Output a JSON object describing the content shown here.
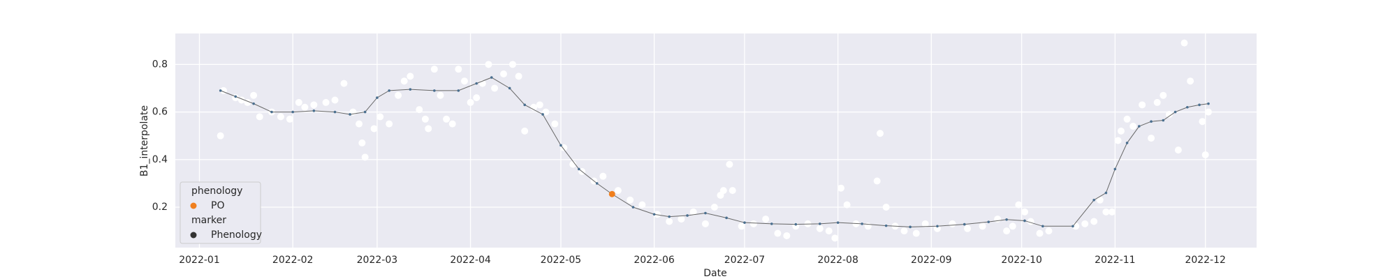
{
  "chart_data": {
    "type": "line",
    "xlabel": "Date",
    "ylabel": "B1_interpolate",
    "xlim": [
      -8,
      351
    ],
    "ylim": [
      0.03,
      0.93
    ],
    "xticks": [
      {
        "value": 0,
        "label": "2022-01"
      },
      {
        "value": 31,
        "label": "2022-02"
      },
      {
        "value": 59,
        "label": "2022-03"
      },
      {
        "value": 90,
        "label": "2022-04"
      },
      {
        "value": 120,
        "label": "2022-05"
      },
      {
        "value": 151,
        "label": "2022-06"
      },
      {
        "value": 181,
        "label": "2022-07"
      },
      {
        "value": 212,
        "label": "2022-08"
      },
      {
        "value": 243,
        "label": "2022-09"
      },
      {
        "value": 273,
        "label": "2022-10"
      },
      {
        "value": 304,
        "label": "2022-11"
      },
      {
        "value": 334,
        "label": "2022-12"
      }
    ],
    "yticks": [
      0.2,
      0.4,
      0.6,
      0.8
    ],
    "grid": true,
    "legend": {
      "hue_title": "phenology",
      "style_title": "marker",
      "style_label": "Phenology",
      "loc": "lower left"
    },
    "series": [
      {
        "name": "PO",
        "kind": "point",
        "color": "#f07f1e",
        "x": [
          137
        ],
        "values": [
          0.255
        ]
      },
      {
        "kind": "line",
        "color": "#4a6f8f",
        "x": [
          7,
          12,
          18,
          24,
          31,
          38,
          45,
          50,
          55,
          59,
          63,
          70,
          78,
          86,
          92,
          97,
          103,
          108,
          114,
          120,
          126,
          132,
          137,
          144,
          151,
          156,
          162,
          168,
          175,
          181,
          190,
          198,
          206,
          212,
          220,
          228,
          236,
          245,
          254,
          262,
          268,
          274,
          280,
          290,
          297,
          301,
          304,
          308,
          312,
          316,
          320,
          324,
          328,
          332,
          335
        ],
        "values": [
          0.69,
          0.665,
          0.635,
          0.6,
          0.6,
          0.605,
          0.6,
          0.59,
          0.6,
          0.66,
          0.69,
          0.695,
          0.69,
          0.69,
          0.72,
          0.745,
          0.7,
          0.63,
          0.59,
          0.46,
          0.36,
          0.3,
          0.255,
          0.2,
          0.17,
          0.16,
          0.165,
          0.175,
          0.155,
          0.135,
          0.13,
          0.128,
          0.13,
          0.135,
          0.13,
          0.122,
          0.117,
          0.12,
          0.128,
          0.138,
          0.148,
          0.143,
          0.12,
          0.12,
          0.23,
          0.26,
          0.36,
          0.47,
          0.54,
          0.56,
          0.565,
          0.6,
          0.62,
          0.63,
          0.635
        ]
      },
      {
        "kind": "scatter",
        "color": "#ffffff",
        "x": [
          7,
          8,
          12,
          14,
          16,
          18,
          20,
          24,
          27,
          30,
          33,
          35,
          38,
          42,
          45,
          48,
          51,
          53,
          54,
          55,
          58,
          60,
          63,
          66,
          68,
          70,
          73,
          75,
          76,
          78,
          80,
          82,
          84,
          86,
          88,
          90,
          92,
          94,
          96,
          98,
          101,
          104,
          106,
          108,
          111,
          113,
          115,
          118,
          121,
          124,
          127,
          131,
          134,
          139,
          143,
          147,
          152,
          156,
          160,
          164,
          168,
          171,
          173,
          174,
          176,
          177,
          180,
          184,
          188,
          192,
          195,
          198,
          202,
          206,
          209,
          211,
          213,
          215,
          218,
          222,
          225,
          226,
          228,
          231,
          234,
          238,
          241,
          245,
          250,
          255,
          260,
          265,
          268,
          270,
          272,
          274,
          276,
          279,
          282,
          291,
          294,
          297,
          299,
          301,
          303,
          305,
          306,
          308,
          310,
          313,
          316,
          318,
          320,
          322,
          325,
          327,
          329,
          333,
          334,
          335
        ],
        "values": [
          0.5,
          0.69,
          0.66,
          0.65,
          0.64,
          0.67,
          0.58,
          0.6,
          0.58,
          0.57,
          0.64,
          0.62,
          0.63,
          0.64,
          0.65,
          0.72,
          0.6,
          0.55,
          0.47,
          0.41,
          0.53,
          0.58,
          0.55,
          0.67,
          0.73,
          0.75,
          0.61,
          0.57,
          0.53,
          0.78,
          0.67,
          0.57,
          0.55,
          0.78,
          0.73,
          0.64,
          0.66,
          0.72,
          0.8,
          0.7,
          0.76,
          0.8,
          0.75,
          0.52,
          0.62,
          0.63,
          0.6,
          0.55,
          0.45,
          0.38,
          0.35,
          0.31,
          0.33,
          0.27,
          0.23,
          0.21,
          0.17,
          0.14,
          0.15,
          0.18,
          0.13,
          0.2,
          0.25,
          0.27,
          0.38,
          0.27,
          0.12,
          0.13,
          0.15,
          0.09,
          0.08,
          0.12,
          0.13,
          0.11,
          0.1,
          0.07,
          0.28,
          0.21,
          0.13,
          0.12,
          0.31,
          0.51,
          0.2,
          0.12,
          0.1,
          0.09,
          0.13,
          0.11,
          0.13,
          0.11,
          0.12,
          0.15,
          0.1,
          0.12,
          0.21,
          0.18,
          0.14,
          0.09,
          0.1,
          0.12,
          0.13,
          0.14,
          0.23,
          0.18,
          0.18,
          0.48,
          0.52,
          0.57,
          0.54,
          0.63,
          0.49,
          0.64,
          0.67,
          0.59,
          0.44,
          0.89,
          0.73,
          0.56,
          0.42,
          0.6
        ]
      }
    ]
  }
}
